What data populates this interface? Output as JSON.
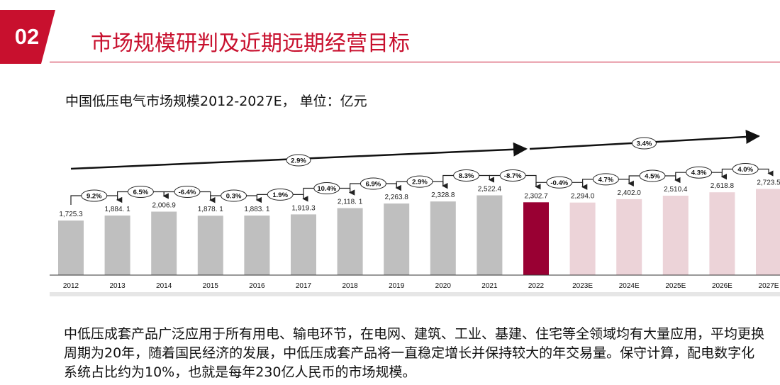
{
  "section": {
    "number": "02",
    "title": "市场规模研判及近期远期经营目标"
  },
  "chart_caption": "中国低压电气市场规模2012-2027E， 单位：亿元",
  "colors": {
    "accent": "#c8102e",
    "historical": "#bfbfbf",
    "current": "#990033",
    "forecast": "#ecd3d8"
  },
  "chart_data": {
    "type": "bar",
    "title": "中国低压电气市场规模2012-2027E， 单位：亿元",
    "categories": [
      "2012",
      "2013",
      "2014",
      "2015",
      "2016",
      "2017",
      "2018",
      "2019",
      "2020",
      "2021",
      "2022",
      "2023E",
      "2024E",
      "2025E",
      "2026E",
      "2027E"
    ],
    "values": [
      1725.3,
      1884.1,
      2006.9,
      1878.1,
      1883.1,
      1919.3,
      2118.1,
      2263.8,
      2328.8,
      2522.4,
      2302.7,
      2294.0,
      2402.0,
      2510.4,
      2618.8,
      2723.5
    ],
    "value_labels": [
      "1,725.3",
      "1,884. 1",
      "2,006.9",
      "1,878. 1",
      "1,883. 1",
      "1,919.3",
      "2,118. 1",
      "2,263.8",
      "2,328.8",
      "2,522.4",
      "2,302.7",
      "2,294.0",
      "2,402.0",
      "2,510.4",
      "2,618.8",
      "2,723.5"
    ],
    "bar_kind": [
      "historical",
      "historical",
      "historical",
      "historical",
      "historical",
      "historical",
      "historical",
      "historical",
      "historical",
      "historical",
      "current",
      "forecast",
      "forecast",
      "forecast",
      "forecast",
      "forecast"
    ],
    "growth_labels": [
      "9.2%",
      "6.5%",
      "-6.4%",
      "0.3%",
      "1.9%",
      "10.4%",
      "6.9%",
      "2.9%",
      "8.3%",
      "-8.7%",
      "-0.4%",
      "4.7%",
      "4.5%",
      "4.3%",
      "4.0%"
    ],
    "cagr": [
      {
        "label": "2.9%",
        "from": "2012",
        "to": "2022"
      },
      {
        "label": "3.4%",
        "from": "2022",
        "to": "2027E"
      }
    ]
  },
  "body_text": "中低压成套产品广泛应用于所有用电、输电环节，在电网、建筑、工业、基建、住宅等全领域均有大量应用，平均更换周期为20年，随着国民经济的发展，中低压成套产品将一直稳定增长并保持较大的年交易量。保守计算，配电数字化系统占比约为10%，也就是每年230亿人民币的市场规模。"
}
